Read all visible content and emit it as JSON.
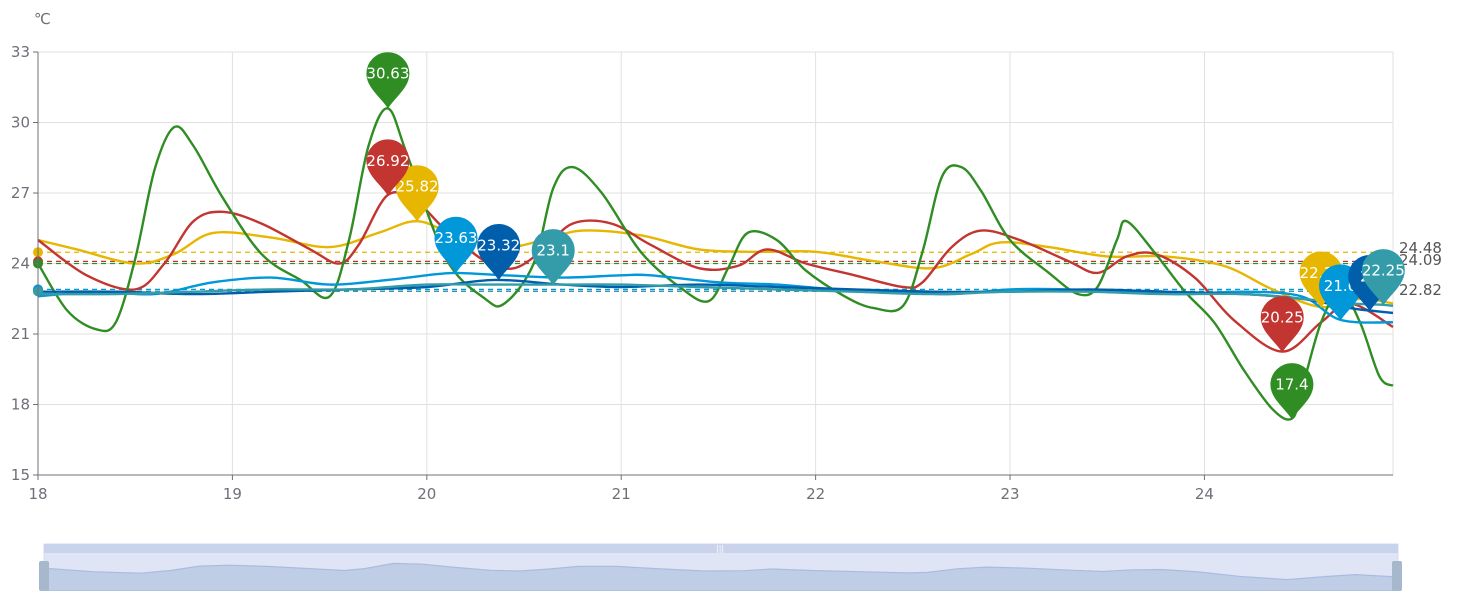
{
  "chart_data": {
    "type": "line",
    "unit_label": "℃",
    "x_ticks": [
      "18",
      "19",
      "20",
      "21",
      "22",
      "23",
      "24"
    ],
    "xlim": [
      18,
      24.97
    ],
    "ylim": [
      15,
      33
    ],
    "y_ticks": [
      "15",
      "18",
      "21",
      "24",
      "27",
      "30",
      "33"
    ],
    "grid": true,
    "series": [
      {
        "color": "#e6b600",
        "average": 24.48,
        "points": [
          [
            18,
            25.0
          ],
          [
            18.2,
            24.6
          ],
          [
            18.5,
            24.0
          ],
          [
            18.7,
            24.4
          ],
          [
            18.9,
            25.3
          ],
          [
            19.2,
            25.1
          ],
          [
            19.5,
            24.7
          ],
          [
            19.75,
            25.3
          ],
          [
            19.95,
            25.8
          ],
          [
            20.15,
            25.2
          ],
          [
            20.4,
            24.7
          ],
          [
            20.6,
            25.0
          ],
          [
            20.8,
            25.4
          ],
          [
            21.1,
            25.2
          ],
          [
            21.4,
            24.6
          ],
          [
            21.7,
            24.5
          ],
          [
            22.0,
            24.5
          ],
          [
            22.3,
            24.1
          ],
          [
            22.6,
            23.8
          ],
          [
            22.8,
            24.4
          ],
          [
            22.95,
            24.9
          ],
          [
            23.2,
            24.7
          ],
          [
            23.5,
            24.3
          ],
          [
            23.8,
            24.3
          ],
          [
            24.1,
            23.9
          ],
          [
            24.35,
            22.9
          ],
          [
            24.6,
            22.15
          ],
          [
            24.8,
            22.5
          ],
          [
            24.97,
            22.3
          ]
        ],
        "pins": [
          {
            "x": 19.95,
            "y": 25.82,
            "label": "25.82"
          },
          {
            "x": 24.6,
            "y": 22.15,
            "label": "22.15"
          }
        ]
      },
      {
        "color": "#c23531",
        "average": 24.09,
        "points": [
          [
            18,
            25.0
          ],
          [
            18.25,
            23.5
          ],
          [
            18.5,
            22.9
          ],
          [
            18.65,
            24.0
          ],
          [
            18.8,
            25.8
          ],
          [
            18.95,
            26.2
          ],
          [
            19.15,
            25.7
          ],
          [
            19.4,
            24.6
          ],
          [
            19.55,
            24.0
          ],
          [
            19.65,
            24.8
          ],
          [
            19.8,
            26.92
          ],
          [
            19.95,
            26.6
          ],
          [
            20.1,
            25.4
          ],
          [
            20.3,
            24.1
          ],
          [
            20.45,
            23.8
          ],
          [
            20.6,
            24.6
          ],
          [
            20.75,
            25.7
          ],
          [
            20.95,
            25.7
          ],
          [
            21.15,
            24.8
          ],
          [
            21.4,
            23.8
          ],
          [
            21.6,
            23.9
          ],
          [
            21.75,
            24.6
          ],
          [
            21.95,
            24.0
          ],
          [
            22.2,
            23.5
          ],
          [
            22.45,
            23.0
          ],
          [
            22.55,
            23.2
          ],
          [
            22.7,
            24.7
          ],
          [
            22.85,
            25.4
          ],
          [
            23.05,
            25.0
          ],
          [
            23.3,
            24.1
          ],
          [
            23.45,
            23.6
          ],
          [
            23.6,
            24.3
          ],
          [
            23.75,
            24.4
          ],
          [
            23.95,
            23.4
          ],
          [
            24.15,
            21.6
          ],
          [
            24.4,
            20.25
          ],
          [
            24.6,
            21.5
          ],
          [
            24.75,
            22.3
          ],
          [
            24.97,
            21.3
          ]
        ],
        "pins": [
          {
            "x": 19.8,
            "y": 26.92,
            "label": "26.92"
          },
          {
            "x": 24.4,
            "y": 20.25,
            "label": "20.25"
          }
        ]
      },
      {
        "color": "#2f8d24",
        "average": 24.0,
        "points": [
          [
            18,
            24.0
          ],
          [
            18.15,
            22.0
          ],
          [
            18.3,
            21.2
          ],
          [
            18.4,
            21.5
          ],
          [
            18.5,
            24.2
          ],
          [
            18.6,
            28.0
          ],
          [
            18.7,
            29.8
          ],
          [
            18.8,
            29.0
          ],
          [
            18.95,
            26.8
          ],
          [
            19.15,
            24.4
          ],
          [
            19.35,
            23.3
          ],
          [
            19.5,
            22.6
          ],
          [
            19.6,
            25.0
          ],
          [
            19.7,
            29.0
          ],
          [
            19.8,
            30.6
          ],
          [
            19.9,
            28.6
          ],
          [
            20.1,
            24.2
          ],
          [
            20.3,
            22.5
          ],
          [
            20.4,
            22.3
          ],
          [
            20.55,
            24.0
          ],
          [
            20.65,
            27.2
          ],
          [
            20.75,
            28.1
          ],
          [
            20.9,
            27.0
          ],
          [
            21.1,
            24.5
          ],
          [
            21.3,
            23.0
          ],
          [
            21.45,
            22.4
          ],
          [
            21.55,
            23.8
          ],
          [
            21.65,
            25.3
          ],
          [
            21.8,
            25.0
          ],
          [
            21.95,
            23.7
          ],
          [
            22.15,
            22.6
          ],
          [
            22.3,
            22.1
          ],
          [
            22.45,
            22.2
          ],
          [
            22.55,
            24.5
          ],
          [
            22.65,
            27.7
          ],
          [
            22.75,
            28.1
          ],
          [
            22.85,
            27.1
          ],
          [
            23.0,
            25.0
          ],
          [
            23.2,
            23.6
          ],
          [
            23.35,
            22.7
          ],
          [
            23.45,
            23.0
          ],
          [
            23.55,
            25.0
          ],
          [
            23.6,
            25.8
          ],
          [
            23.75,
            24.4
          ],
          [
            23.9,
            22.8
          ],
          [
            24.05,
            21.5
          ],
          [
            24.2,
            19.5
          ],
          [
            24.35,
            17.8
          ],
          [
            24.45,
            17.4
          ],
          [
            24.5,
            18.6
          ],
          [
            24.6,
            21.5
          ],
          [
            24.7,
            22.8
          ],
          [
            24.8,
            21.5
          ],
          [
            24.9,
            19.2
          ],
          [
            24.97,
            18.8
          ]
        ],
        "pins": [
          {
            "x": 19.8,
            "y": 30.63,
            "label": "30.63"
          },
          {
            "x": 24.45,
            "y": 17.4,
            "label": "17.4"
          }
        ]
      },
      {
        "color": "#0098d9",
        "average": 22.9,
        "points": [
          [
            18,
            22.6
          ],
          [
            18.3,
            22.8
          ],
          [
            18.6,
            22.7
          ],
          [
            18.9,
            23.2
          ],
          [
            19.2,
            23.4
          ],
          [
            19.5,
            23.1
          ],
          [
            19.8,
            23.3
          ],
          [
            20.0,
            23.5
          ],
          [
            20.15,
            23.6
          ],
          [
            20.4,
            23.5
          ],
          [
            20.7,
            23.4
          ],
          [
            21.0,
            23.5
          ],
          [
            21.15,
            23.5
          ],
          [
            21.5,
            23.2
          ],
          [
            21.8,
            23.1
          ],
          [
            22.1,
            22.9
          ],
          [
            22.4,
            22.8
          ],
          [
            22.7,
            22.7
          ],
          [
            23.0,
            22.9
          ],
          [
            23.3,
            22.9
          ],
          [
            23.6,
            22.8
          ],
          [
            23.9,
            22.7
          ],
          [
            24.2,
            22.8
          ],
          [
            24.5,
            22.6
          ],
          [
            24.7,
            21.6
          ],
          [
            24.97,
            21.5
          ]
        ],
        "pins": [
          {
            "x": 20.15,
            "y": 23.63,
            "label": "23.63"
          },
          {
            "x": 24.7,
            "y": 21.6,
            "label": "21.6"
          }
        ]
      },
      {
        "color": "#005eaa",
        "average": 22.82,
        "points": [
          [
            18,
            22.8
          ],
          [
            18.4,
            22.8
          ],
          [
            18.8,
            22.7
          ],
          [
            19.2,
            22.8
          ],
          [
            19.6,
            22.9
          ],
          [
            20.0,
            23.0
          ],
          [
            20.35,
            23.3
          ],
          [
            20.7,
            23.1
          ],
          [
            21.0,
            23.0
          ],
          [
            21.4,
            23.1
          ],
          [
            21.8,
            23.0
          ],
          [
            22.2,
            22.9
          ],
          [
            22.6,
            22.8
          ],
          [
            23.0,
            22.8
          ],
          [
            23.4,
            22.9
          ],
          [
            23.8,
            22.8
          ],
          [
            24.2,
            22.7
          ],
          [
            24.5,
            22.5
          ],
          [
            24.75,
            22.1
          ],
          [
            24.85,
            22.0
          ],
          [
            24.97,
            21.9
          ]
        ],
        "pins": [
          {
            "x": 20.37,
            "y": 23.32,
            "label": "23.32"
          },
          {
            "x": 24.85,
            "y": 22.0,
            "label": "22"
          }
        ]
      },
      {
        "color": "#339ca8",
        "average": 22.82,
        "points": [
          [
            18,
            22.7
          ],
          [
            18.4,
            22.7
          ],
          [
            18.8,
            22.8
          ],
          [
            19.2,
            22.9
          ],
          [
            19.6,
            22.9
          ],
          [
            20.0,
            23.1
          ],
          [
            20.3,
            23.1
          ],
          [
            20.65,
            23.1
          ],
          [
            21.0,
            23.1
          ],
          [
            21.4,
            23.0
          ],
          [
            21.8,
            22.9
          ],
          [
            22.2,
            22.8
          ],
          [
            22.6,
            22.7
          ],
          [
            23.0,
            22.8
          ],
          [
            23.4,
            22.8
          ],
          [
            23.8,
            22.7
          ],
          [
            24.2,
            22.7
          ],
          [
            24.5,
            22.5
          ],
          [
            24.75,
            22.3
          ],
          [
            24.9,
            22.25
          ],
          [
            24.97,
            22.2
          ]
        ],
        "pins": [
          {
            "x": 20.65,
            "y": 23.1,
            "label": "23.1"
          },
          {
            "x": 24.92,
            "y": 22.25,
            "label": "22.25"
          }
        ]
      }
    ],
    "average_labels": [
      "24.48",
      "24.09",
      "22.82"
    ]
  }
}
